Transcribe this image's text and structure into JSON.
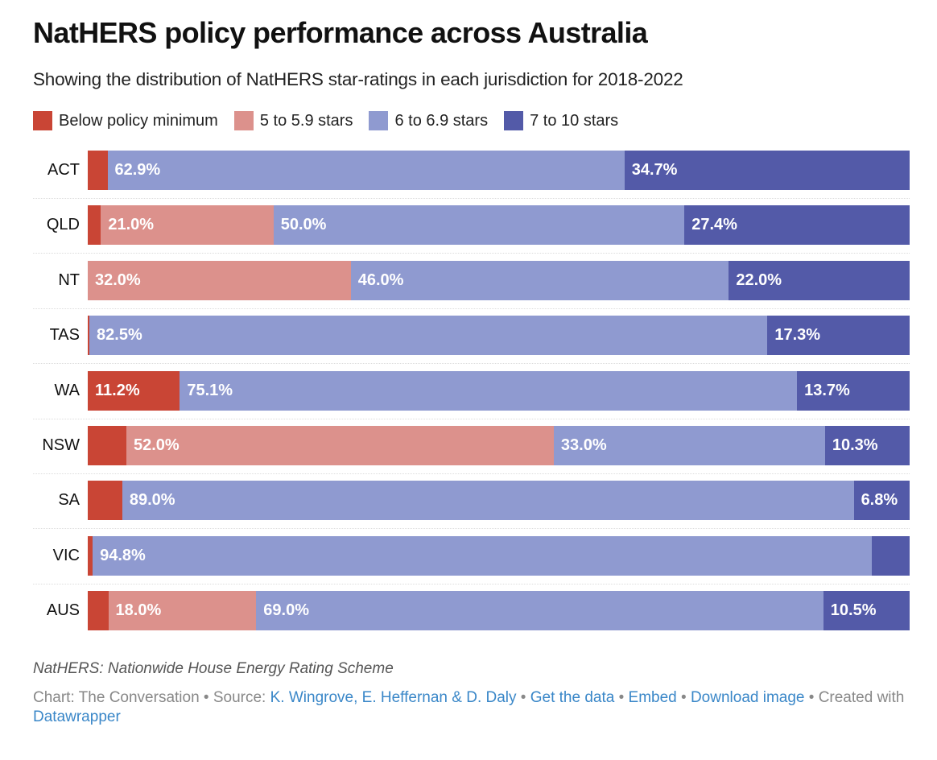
{
  "header": {
    "title": "NatHERS policy performance across Australia",
    "subtitle": "Showing the distribution of NatHERS star-ratings in each jurisdiction for 2018-2022"
  },
  "colors": {
    "below_min": "#c94535",
    "stars_5": "#dc918c",
    "stars_6": "#8f9ad0",
    "stars_7": "#535aa8",
    "link": "#3a87c8"
  },
  "chart_data": {
    "type": "bar",
    "orientation": "horizontal",
    "stacked": true,
    "title": "NatHERS policy performance across Australia",
    "subtitle": "Showing the distribution of NatHERS star-ratings in each jurisdiction for 2018-2022",
    "xlabel": "",
    "ylabel": "",
    "xlim": [
      0,
      100
    ],
    "legend_position": "top-left",
    "grid": false,
    "categories": [
      "ACT",
      "QLD",
      "NT",
      "TAS",
      "WA",
      "NSW",
      "SA",
      "VIC",
      "AUS"
    ],
    "series": [
      {
        "name": "Below policy minimum",
        "color": "#c94535",
        "values": [
          2.4,
          1.6,
          0.0,
          0.2,
          11.2,
          4.7,
          4.2,
          0.6,
          2.5
        ],
        "labels": [
          "",
          "",
          "",
          "",
          "11.2%",
          "",
          "",
          "",
          ""
        ]
      },
      {
        "name": "5 to 5.9 stars",
        "color": "#dc918c",
        "values": [
          0.0,
          21.0,
          32.0,
          0.0,
          0.0,
          52.0,
          0.0,
          0.0,
          18.0
        ],
        "labels": [
          "",
          "21.0%",
          "32.0%",
          "",
          "",
          "52.0%",
          "",
          "",
          "18.0%"
        ]
      },
      {
        "name": "6 to 6.9 stars",
        "color": "#8f9ad0",
        "values": [
          62.9,
          50.0,
          46.0,
          82.5,
          75.1,
          33.0,
          89.0,
          94.8,
          69.0
        ],
        "labels": [
          "62.9%",
          "50.0%",
          "46.0%",
          "82.5%",
          "75.1%",
          "33.0%",
          "89.0%",
          "94.8%",
          "69.0%"
        ]
      },
      {
        "name": "7 to 10 stars",
        "color": "#535aa8",
        "values": [
          34.7,
          27.4,
          22.0,
          17.3,
          13.7,
          10.3,
          6.8,
          4.6,
          10.5
        ],
        "labels": [
          "34.7%",
          "27.4%",
          "22.0%",
          "17.3%",
          "13.7%",
          "10.3%",
          "6.8%",
          "",
          "10.5%"
        ]
      }
    ]
  },
  "footer": {
    "note": "NatHERS: Nationwide House Energy Rating Scheme",
    "chart_prefix": "Chart: The Conversation • Source: ",
    "source_link": "K. Wingrove, E. Heffernan & D. Daly",
    "sep1": " • ",
    "get_data": "Get the data",
    "sep2": " • ",
    "embed": "Embed",
    "sep3": " • ",
    "download": "Download image",
    "created": " • Created with ",
    "datawrapper": "Datawrapper"
  }
}
